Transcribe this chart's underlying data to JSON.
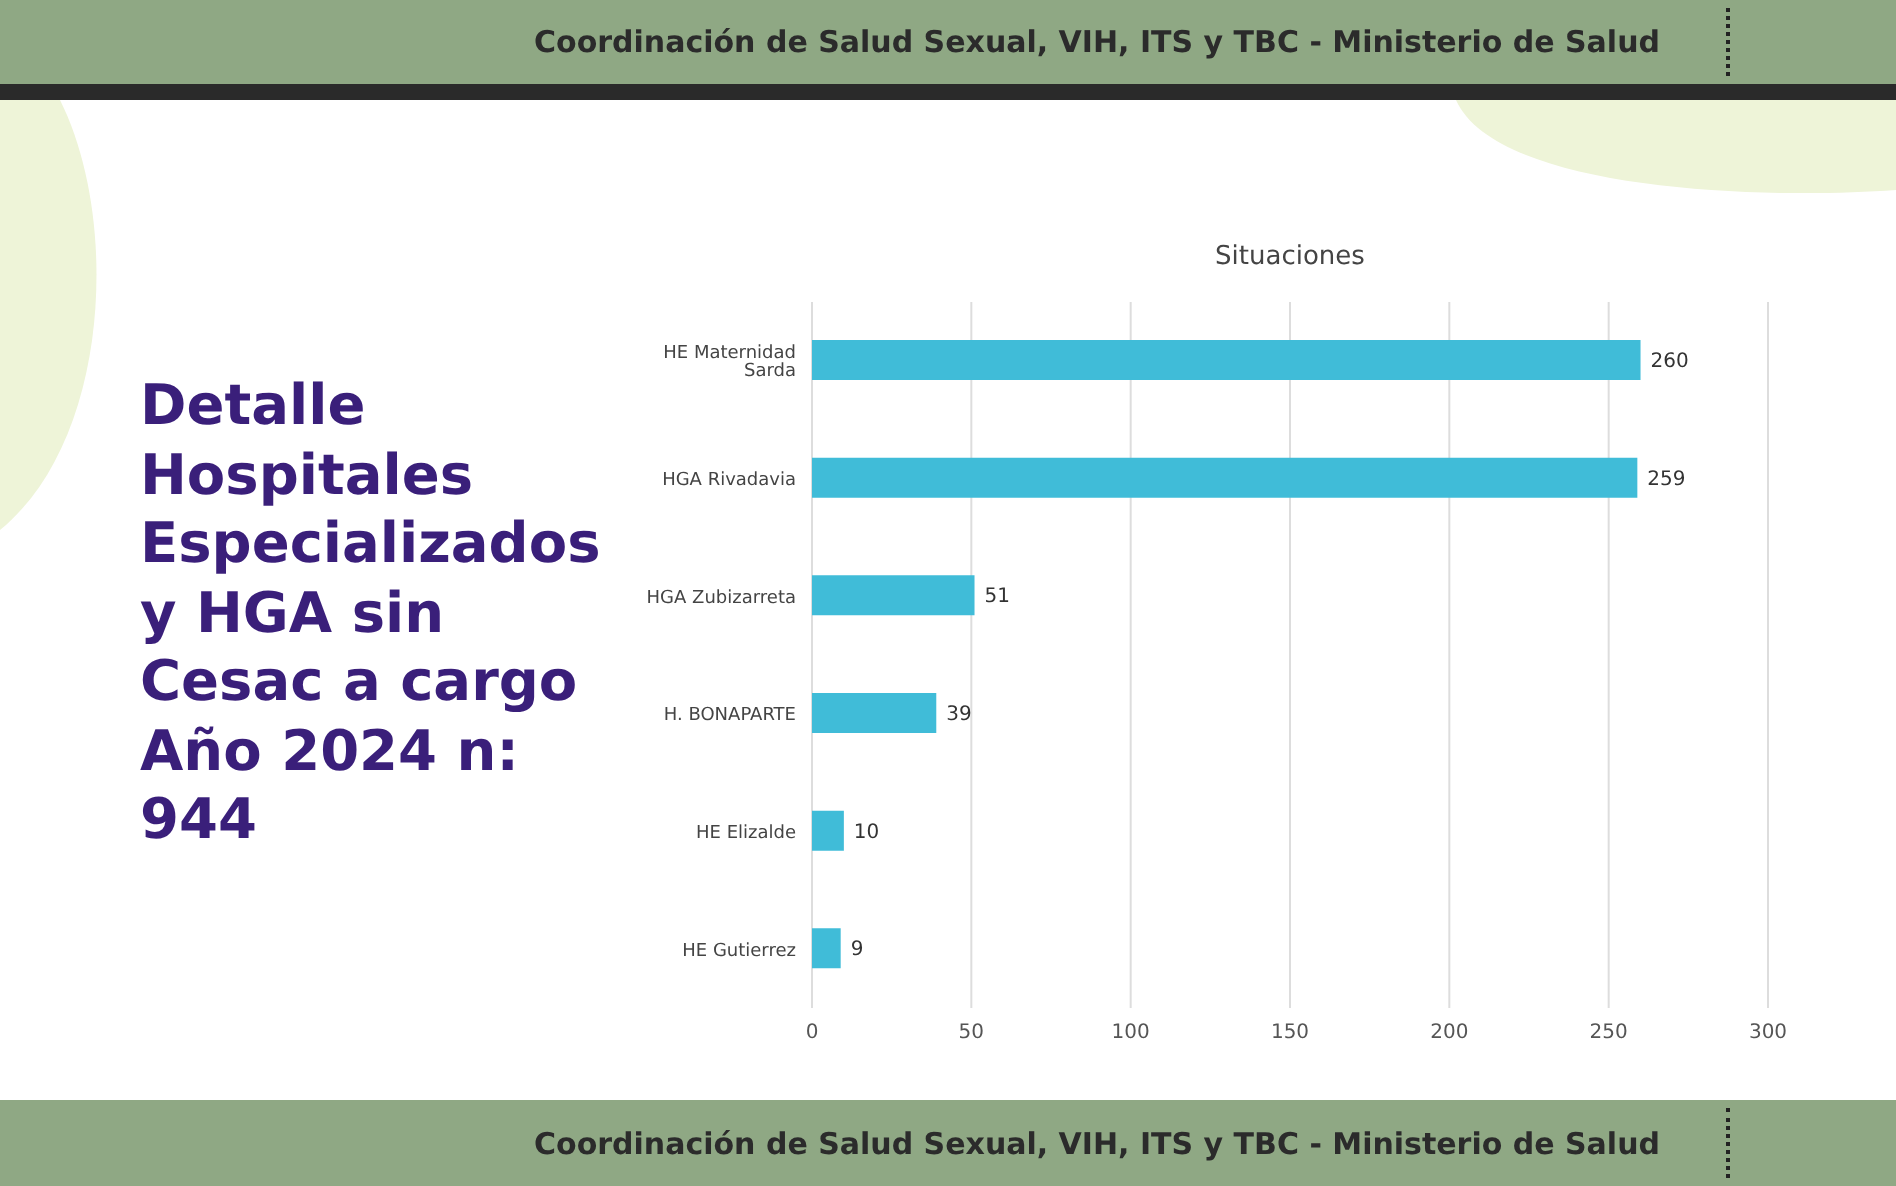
{
  "chart_data": {
    "type": "bar",
    "orientation": "horizontal",
    "title": "Detalle Hospitales Especializados y HGA sin Cesac a cargo Año 2024 n: 944",
    "subtitle": "Situaciones",
    "categories": [
      "HE Maternidad Sarda",
      "HGA Rivadavia",
      "HGA Zubizarreta",
      "H. BONAPARTE",
      "HE Elizalde",
      "HE Gutierrez"
    ],
    "values": [
      260,
      259,
      51,
      39,
      10,
      9
    ],
    "color": "#40bcd8",
    "xlim": [
      0,
      300
    ],
    "xticks": [
      0,
      50,
      100,
      150,
      200,
      250,
      300
    ],
    "grid": "x",
    "data_labels": true,
    "annotations": [
      "Coordinación de Salud Sexual, VIH, ITS y TBC - Ministerio de Salud",
      "Coordinación de Salud Sexual, VIH, ITS y TBC - Ministerio de Salud"
    ]
  }
}
